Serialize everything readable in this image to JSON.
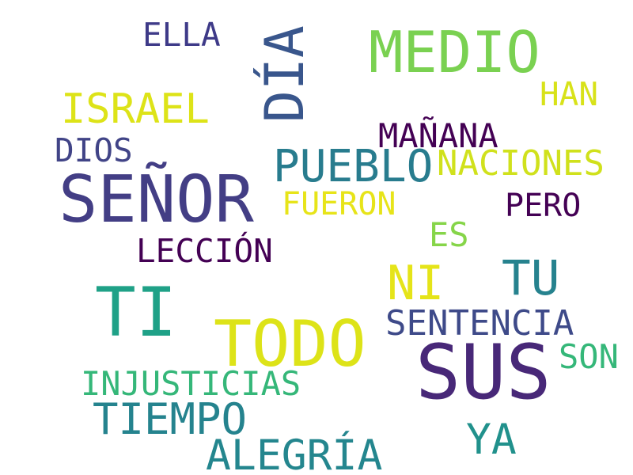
{
  "words": [
    {
      "text": "SEÑOR",
      "color": "#433e85"
    },
    {
      "text": "SUS",
      "color": "#482878"
    },
    {
      "text": "TI",
      "color": "#1fa187"
    },
    {
      "text": "TODO",
      "color": "#dde318"
    },
    {
      "text": "MEDIO",
      "color": "#7ad151"
    },
    {
      "text": "DÍA",
      "color": "#39568c"
    },
    {
      "text": "PUEBLO",
      "color": "#287c8e"
    },
    {
      "text": "ALEGRÍA",
      "color": "#24868e"
    },
    {
      "text": "TIEMPO",
      "color": "#25838e"
    },
    {
      "text": "TU",
      "color": "#26828e"
    },
    {
      "text": "ISRAEL",
      "color": "#dde318"
    },
    {
      "text": "NI",
      "color": "#e5e419"
    },
    {
      "text": "YA",
      "color": "#21918c"
    },
    {
      "text": "SENTENCIA",
      "color": "#3e4a89"
    },
    {
      "text": "NACIONES",
      "color": "#d0e11c"
    },
    {
      "text": "INJUSTICIAS",
      "color": "#35b779"
    },
    {
      "text": "LECCIÓN",
      "color": "#440154"
    },
    {
      "text": "MAÑANA",
      "color": "#440154"
    },
    {
      "text": "FUERON",
      "color": "#e7e419"
    },
    {
      "text": "PERO",
      "color": "#440154"
    },
    {
      "text": "ELLA",
      "color": "#3e3a88"
    },
    {
      "text": "DIOS",
      "color": "#414487"
    },
    {
      "text": "HAN",
      "color": "#d8e219"
    },
    {
      "text": "ES",
      "color": "#86d549"
    },
    {
      "text": "SON",
      "color": "#35b779"
    }
  ]
}
